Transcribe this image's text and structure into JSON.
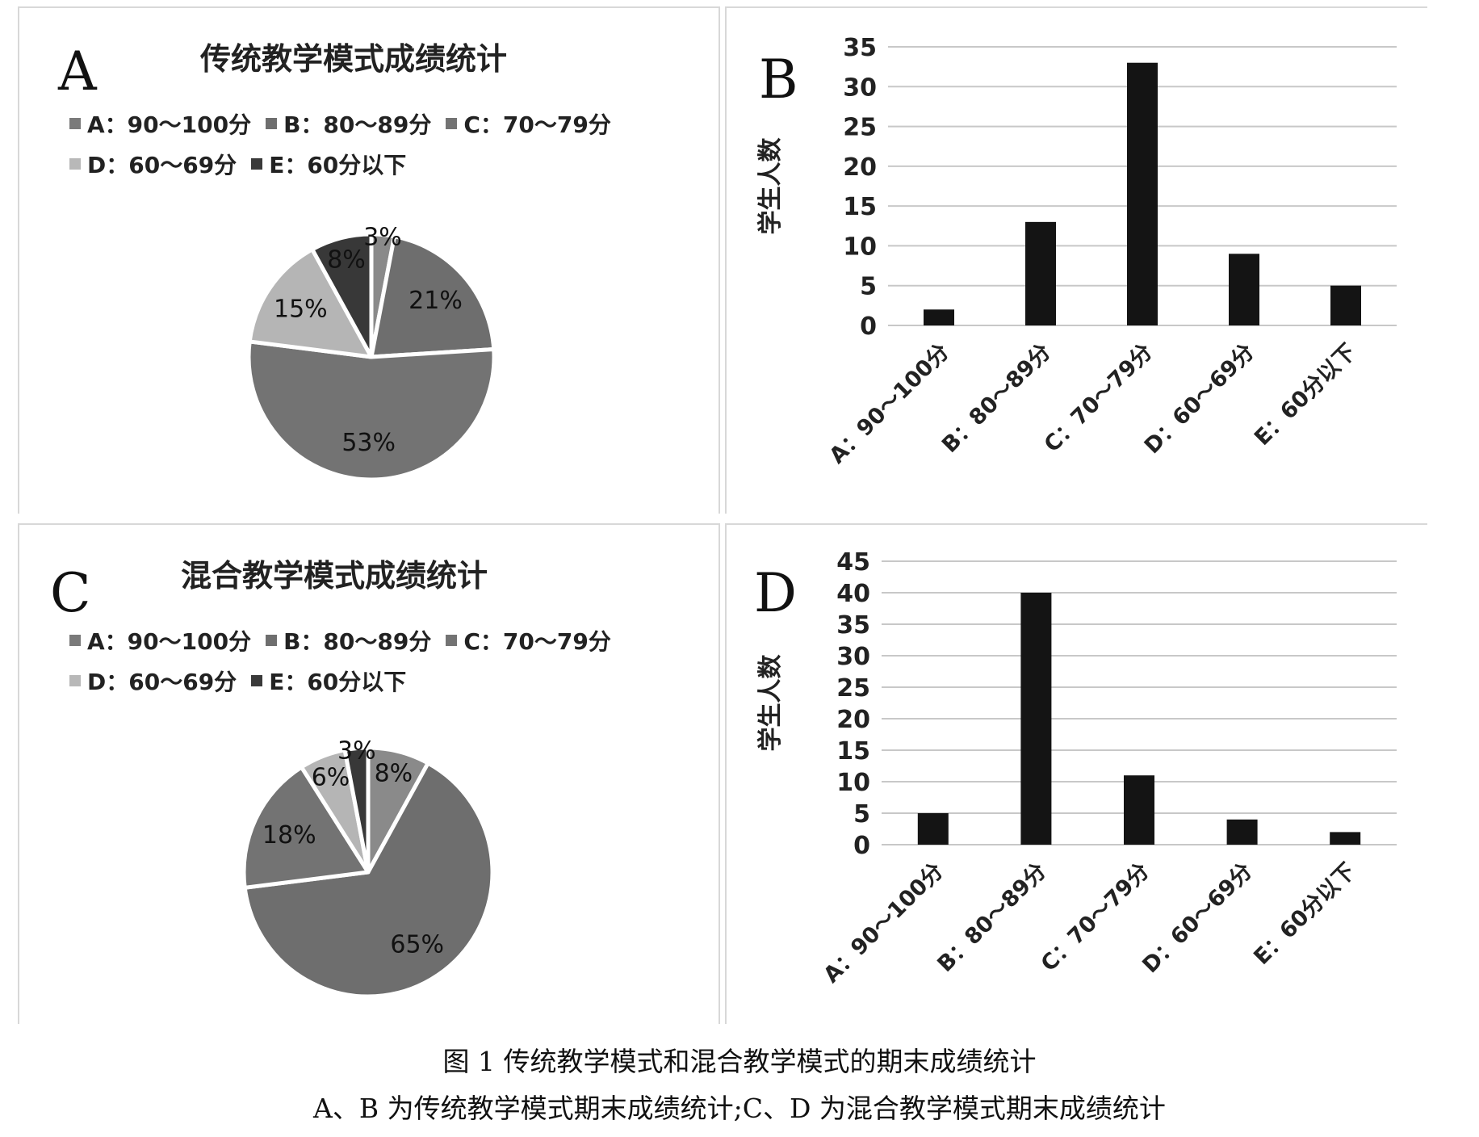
{
  "figure_caption": "图 1  传统教学模式和混合教学模式的期末成绩统计",
  "figure_subcaption": "A、B 为传统教学模式期末成绩统计;C、D 为混合教学模式期末成绩统计",
  "panels": {
    "A": {
      "letter": "A",
      "title": "传统教学模式成绩统计"
    },
    "B": {
      "letter": "B"
    },
    "C": {
      "letter": "C",
      "title": "混合教学模式成绩统计"
    },
    "D": {
      "letter": "D"
    }
  },
  "legend": [
    {
      "label": "A：90～100分",
      "color": "#7a7a7a"
    },
    {
      "label": "B：80～89分",
      "color": "#6e6e6e"
    },
    {
      "label": "C：70～79分",
      "color": "#737373"
    },
    {
      "label": "D：60～69分",
      "color": "#b8b8b8"
    },
    {
      "label": "E：60分以下",
      "color": "#3a3a3a"
    }
  ],
  "chart_data": [
    {
      "id": "A",
      "type": "pie",
      "title": "传统教学模式成绩统计",
      "labels": [
        "A：90～100分",
        "B：80～89分",
        "C：70～79分",
        "D：60～69分",
        "E：60分以下"
      ],
      "values": [
        3,
        21,
        53,
        15,
        8
      ],
      "value_labels": [
        "3%",
        "21%",
        "53%",
        "15%",
        "8%"
      ],
      "colors": [
        "#8a8a8a",
        "#6e6e6e",
        "#737373",
        "#b5b5b5",
        "#383838"
      ]
    },
    {
      "id": "B",
      "type": "bar",
      "categories": [
        "A：90～100分",
        "B：80～89分",
        "C：70～79分",
        "D：60～69分",
        "E：60分以下"
      ],
      "values": [
        2,
        13,
        33,
        9,
        5
      ],
      "ylabel": "学生人数",
      "ylim": [
        0,
        35
      ],
      "yticks": [
        0,
        5,
        10,
        15,
        20,
        25,
        30,
        35
      ],
      "grid": true,
      "bar_color": "#141414"
    },
    {
      "id": "C",
      "type": "pie",
      "title": "混合教学模式成绩统计",
      "labels": [
        "A：90～100分",
        "B：80～89分",
        "C：70～79分",
        "D：60～69分",
        "E：60分以下"
      ],
      "values": [
        8,
        65,
        18,
        6,
        3
      ],
      "value_labels": [
        "8%",
        "65%",
        "18%",
        "6%",
        "3%"
      ],
      "colors": [
        "#8a8a8a",
        "#6e6e6e",
        "#737373",
        "#b5b5b5",
        "#383838"
      ]
    },
    {
      "id": "D",
      "type": "bar",
      "categories": [
        "A：90～100分",
        "B：80～89分",
        "C：70～79分",
        "D：60～69分",
        "E：60分以下"
      ],
      "values": [
        5,
        40,
        11,
        4,
        2
      ],
      "ylabel": "学生人数",
      "ylim": [
        0,
        45
      ],
      "yticks": [
        0,
        5,
        10,
        15,
        20,
        25,
        30,
        35,
        40,
        45
      ],
      "grid": true,
      "bar_color": "#141414"
    }
  ]
}
